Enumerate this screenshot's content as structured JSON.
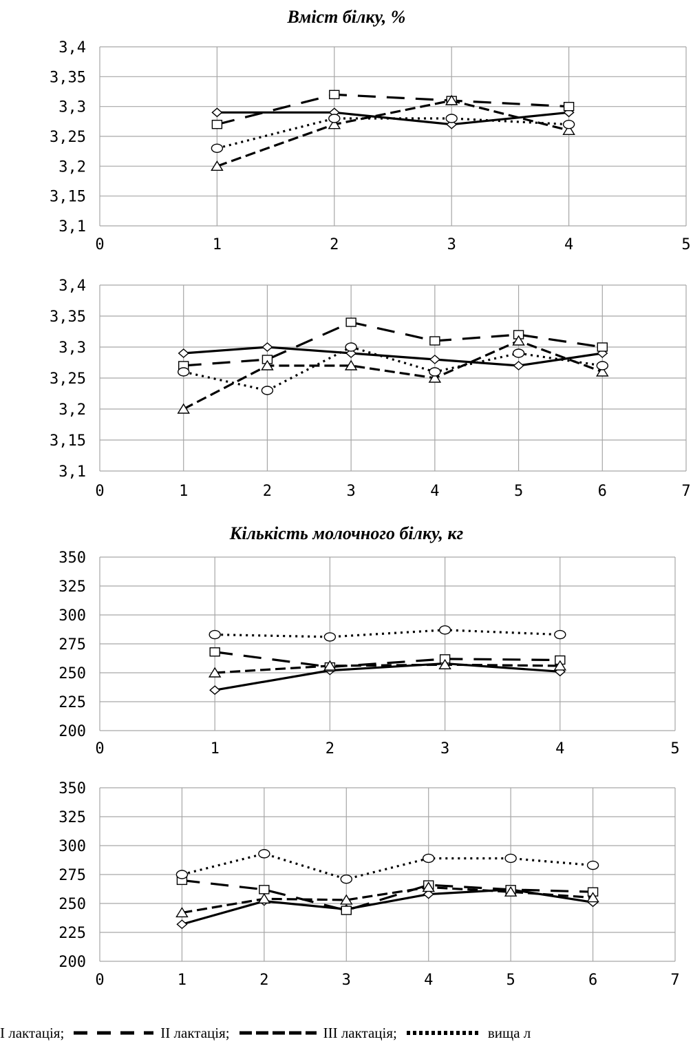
{
  "titles": {
    "protein_content": "Вміст білку, %",
    "protein_amount": "Кількість молочного білку, кг"
  },
  "legend": [
    {
      "key": "l1",
      "label": "І лактація;"
    },
    {
      "key": "l2",
      "label": "ІІ лактація;"
    },
    {
      "key": "l3",
      "label": "ІІІ лактація;"
    },
    {
      "key": "l4",
      "label": "вища л"
    }
  ],
  "colors": {
    "line": "#000000",
    "grid": "#a6a6a6",
    "axis_text": "#000000"
  },
  "chart_data": [
    {
      "id": "c1",
      "type": "line",
      "title": "Вміст білку, %",
      "xlim": [
        0,
        5
      ],
      "ylim": [
        3.1,
        3.4
      ],
      "xticks": [
        "0",
        "1",
        "2",
        "3",
        "4",
        "5"
      ],
      "yticks": [
        "3,1",
        "3,15",
        "3,2",
        "3,25",
        "3,3",
        "3,35",
        "3,4"
      ],
      "grid": true,
      "x": [
        1,
        2,
        3,
        4
      ],
      "series": [
        {
          "key": "l1",
          "marker": "diamond",
          "values": [
            3.29,
            3.29,
            3.27,
            3.29
          ]
        },
        {
          "key": "l2",
          "marker": "square",
          "values": [
            3.27,
            3.32,
            3.31,
            3.3
          ]
        },
        {
          "key": "l3",
          "marker": "triangle",
          "values": [
            3.2,
            3.27,
            3.31,
            3.26
          ]
        },
        {
          "key": "l4",
          "marker": "circle",
          "values": [
            3.23,
            3.28,
            3.28,
            3.27
          ]
        }
      ]
    },
    {
      "id": "c2",
      "type": "line",
      "title": "",
      "xlim": [
        0,
        7
      ],
      "ylim": [
        3.1,
        3.4
      ],
      "xticks": [
        "0",
        "1",
        "2",
        "3",
        "4",
        "5",
        "6",
        "7"
      ],
      "yticks": [
        "3,1",
        "3,15",
        "3,2",
        "3,25",
        "3,3",
        "3,35",
        "3,4"
      ],
      "grid": true,
      "x": [
        1,
        2,
        3,
        4,
        5,
        6
      ],
      "series": [
        {
          "key": "l1",
          "marker": "diamond",
          "values": [
            3.29,
            3.3,
            3.29,
            3.28,
            3.27,
            3.29
          ]
        },
        {
          "key": "l2",
          "marker": "square",
          "values": [
            3.27,
            3.28,
            3.34,
            3.31,
            3.32,
            3.3
          ]
        },
        {
          "key": "l3",
          "marker": "triangle",
          "values": [
            3.2,
            3.27,
            3.27,
            3.25,
            3.31,
            3.26
          ]
        },
        {
          "key": "l4",
          "marker": "circle",
          "values": [
            3.26,
            3.23,
            3.3,
            3.26,
            3.29,
            3.27
          ]
        }
      ]
    },
    {
      "id": "c3",
      "type": "line",
      "title": "Кількість молочного білку, кг",
      "xlim": [
        0,
        5
      ],
      "ylim": [
        200,
        350
      ],
      "xticks": [
        "0",
        "1",
        "2",
        "3",
        "4",
        "5"
      ],
      "yticks": [
        "200",
        "225",
        "250",
        "275",
        "300",
        "325",
        "350"
      ],
      "grid": true,
      "x": [
        1,
        2,
        3,
        4
      ],
      "series": [
        {
          "key": "l1",
          "marker": "diamond",
          "values": [
            235,
            252,
            258,
            251
          ]
        },
        {
          "key": "l2",
          "marker": "square",
          "values": [
            268,
            255,
            262,
            261
          ]
        },
        {
          "key": "l3",
          "marker": "triangle",
          "values": [
            250,
            256,
            257,
            256
          ]
        },
        {
          "key": "l4",
          "marker": "circle",
          "values": [
            283,
            281,
            287,
            283
          ]
        }
      ]
    },
    {
      "id": "c4",
      "type": "line",
      "title": "",
      "xlim": [
        0,
        7
      ],
      "ylim": [
        200,
        350
      ],
      "xticks": [
        "0",
        "1",
        "2",
        "3",
        "4",
        "5",
        "6",
        "7"
      ],
      "yticks": [
        "200",
        "225",
        "250",
        "275",
        "300",
        "325",
        "350"
      ],
      "grid": true,
      "x": [
        1,
        2,
        3,
        4,
        5,
        6
      ],
      "series": [
        {
          "key": "l1",
          "marker": "diamond",
          "values": [
            232,
            252,
            245,
            258,
            262,
            251
          ]
        },
        {
          "key": "l2",
          "marker": "square",
          "values": [
            270,
            262,
            244,
            266,
            262,
            260
          ]
        },
        {
          "key": "l3",
          "marker": "triangle",
          "values": [
            242,
            254,
            253,
            264,
            260,
            255
          ]
        },
        {
          "key": "l4",
          "marker": "circle",
          "values": [
            275,
            293,
            271,
            289,
            289,
            283
          ]
        }
      ]
    }
  ]
}
